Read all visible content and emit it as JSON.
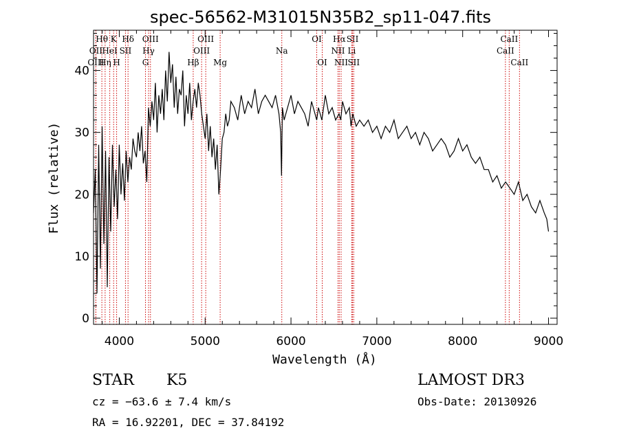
{
  "chart_data": {
    "type": "line",
    "title": "spec-56562-M31015N35B2_sp11-047.fits",
    "xlabel": "Wavelength (Å)",
    "ylabel": "Flux (relative)",
    "xlim": [
      3700,
      9100
    ],
    "ylim": [
      -1,
      46.5
    ],
    "xticks": [
      4000,
      5000,
      6000,
      7000,
      8000,
      9000
    ],
    "yticks": [
      0,
      10,
      20,
      30,
      40
    ],
    "series": [
      {
        "name": "spectrum",
        "x": [
          3700,
          3720,
          3740,
          3760,
          3780,
          3800,
          3820,
          3840,
          3860,
          3880,
          3900,
          3920,
          3940,
          3960,
          3980,
          4000,
          4020,
          4040,
          4060,
          4080,
          4100,
          4120,
          4140,
          4160,
          4180,
          4200,
          4220,
          4240,
          4260,
          4280,
          4300,
          4320,
          4340,
          4360,
          4380,
          4400,
          4420,
          4440,
          4460,
          4480,
          4500,
          4520,
          4540,
          4560,
          4580,
          4600,
          4620,
          4640,
          4660,
          4680,
          4700,
          4720,
          4740,
          4760,
          4780,
          4800,
          4820,
          4840,
          4860,
          4880,
          4900,
          4920,
          4940,
          4960,
          4980,
          5000,
          5020,
          5040,
          5060,
          5080,
          5100,
          5120,
          5140,
          5160,
          5170,
          5180,
          5200,
          5220,
          5240,
          5260,
          5280,
          5300,
          5340,
          5380,
          5420,
          5460,
          5500,
          5540,
          5580,
          5620,
          5660,
          5700,
          5740,
          5780,
          5820,
          5860,
          5880,
          5890,
          5900,
          5920,
          5960,
          6000,
          6040,
          6080,
          6120,
          6160,
          6200,
          6240,
          6280,
          6300,
          6320,
          6360,
          6400,
          6440,
          6480,
          6520,
          6560,
          6580,
          6600,
          6640,
          6680,
          6700,
          6720,
          6760,
          6800,
          6850,
          6900,
          6950,
          7000,
          7050,
          7100,
          7150,
          7200,
          7250,
          7300,
          7350,
          7400,
          7450,
          7500,
          7550,
          7600,
          7650,
          7700,
          7750,
          7800,
          7850,
          7900,
          7950,
          8000,
          8050,
          8100,
          8150,
          8200,
          8250,
          8300,
          8350,
          8400,
          8450,
          8500,
          8550,
          8600,
          8650,
          8700,
          8750,
          8800,
          8850,
          8900,
          8950,
          8980,
          9000
        ],
        "y": [
          17,
          24,
          4,
          28,
          8,
          31,
          12,
          27,
          5,
          26,
          14,
          28,
          18,
          24,
          16,
          28,
          20,
          25,
          19,
          27,
          22,
          26,
          24,
          29,
          27,
          26,
          30,
          27,
          31,
          25,
          27,
          22,
          34,
          31,
          35,
          32,
          38,
          30,
          36,
          33,
          37,
          32,
          40,
          35,
          43,
          38,
          41,
          34,
          39,
          33,
          37,
          36,
          40,
          31,
          36,
          33,
          38,
          32,
          35,
          37,
          34,
          38,
          36,
          33,
          31,
          29,
          33,
          27,
          31,
          26,
          29,
          24,
          28,
          20,
          22,
          24,
          29,
          30,
          33,
          31,
          32,
          35,
          34,
          32,
          36,
          33,
          35,
          34,
          37,
          33,
          35,
          36,
          35,
          34,
          36,
          33,
          30,
          23,
          34,
          32,
          34,
          36,
          33,
          35,
          34,
          33,
          31,
          35,
          33,
          32,
          34,
          32,
          36,
          33,
          34,
          32,
          33,
          32,
          35,
          33,
          34,
          31,
          33,
          31,
          32,
          31,
          32,
          30,
          31,
          29,
          31,
          30,
          32,
          29,
          30,
          31,
          29,
          30,
          28,
          30,
          29,
          27,
          28,
          29,
          28,
          26,
          27,
          29,
          27,
          28,
          26,
          25,
          26,
          24,
          24,
          22,
          23,
          21,
          22,
          21,
          20,
          22,
          19,
          20,
          18,
          17,
          19,
          17,
          16,
          14
        ]
      }
    ],
    "spectral_lines": [
      {
        "label": "Hθ",
        "wave": 3797,
        "row": 0
      },
      {
        "label": "OII",
        "wave": 3727,
        "row": 1
      },
      {
        "label": "OIII",
        "wave": 3727,
        "row": 2
      },
      {
        "label": "HeI",
        "wave": 3889,
        "row": 1
      },
      {
        "label": "Hη",
        "wave": 3835,
        "row": 2
      },
      {
        "label": "K",
        "wave": 3934,
        "row": 0
      },
      {
        "label": "H",
        "wave": 3969,
        "row": 2
      },
      {
        "label": "SII",
        "wave": 4072,
        "row": 1
      },
      {
        "label": "Hδ",
        "wave": 4102,
        "row": 0
      },
      {
        "label": "OIII",
        "wave": 4363,
        "row": 0
      },
      {
        "label": "Hγ",
        "wave": 4341,
        "row": 1
      },
      {
        "label": "G",
        "wave": 4305,
        "row": 2
      },
      {
        "label": "Hβ",
        "wave": 4861,
        "row": 2
      },
      {
        "label": "OIII",
        "wave": 5007,
        "row": 0
      },
      {
        "label": "OIII",
        "wave": 4959,
        "row": 1
      },
      {
        "label": "Mg",
        "wave": 5175,
        "row": 2
      },
      {
        "label": "Na",
        "wave": 5893,
        "row": 1
      },
      {
        "label": "OI",
        "wave": 6300,
        "row": 0
      },
      {
        "label": "OI",
        "wave": 6364,
        "row": 2
      },
      {
        "label": "Hα",
        "wave": 6563,
        "row": 0
      },
      {
        "label": "NII",
        "wave": 6548,
        "row": 1
      },
      {
        "label": "NII",
        "wave": 6584,
        "row": 2
      },
      {
        "label": "SII",
        "wave": 6717,
        "row": 0
      },
      {
        "label": "Li",
        "wave": 6708,
        "row": 1
      },
      {
        "label": "SII",
        "wave": 6731,
        "row": 2
      },
      {
        "label": "CaII",
        "wave": 8542,
        "row": 0
      },
      {
        "label": "CaII",
        "wave": 8498,
        "row": 1
      },
      {
        "label": "CaII",
        "wave": 8662,
        "row": 2
      }
    ]
  },
  "info": {
    "class": "STAR",
    "subclass": "K5",
    "survey": "LAMOST DR3",
    "cz": "cz = −63.6 ± 7.4 km/s",
    "obs_date": "Obs-Date: 20130926",
    "radec": "RA =  16.92201, DEC =  37.84192"
  },
  "colors": {
    "spectrum": "#000000",
    "line_marker": "#cc0000",
    "axis": "#000000"
  }
}
